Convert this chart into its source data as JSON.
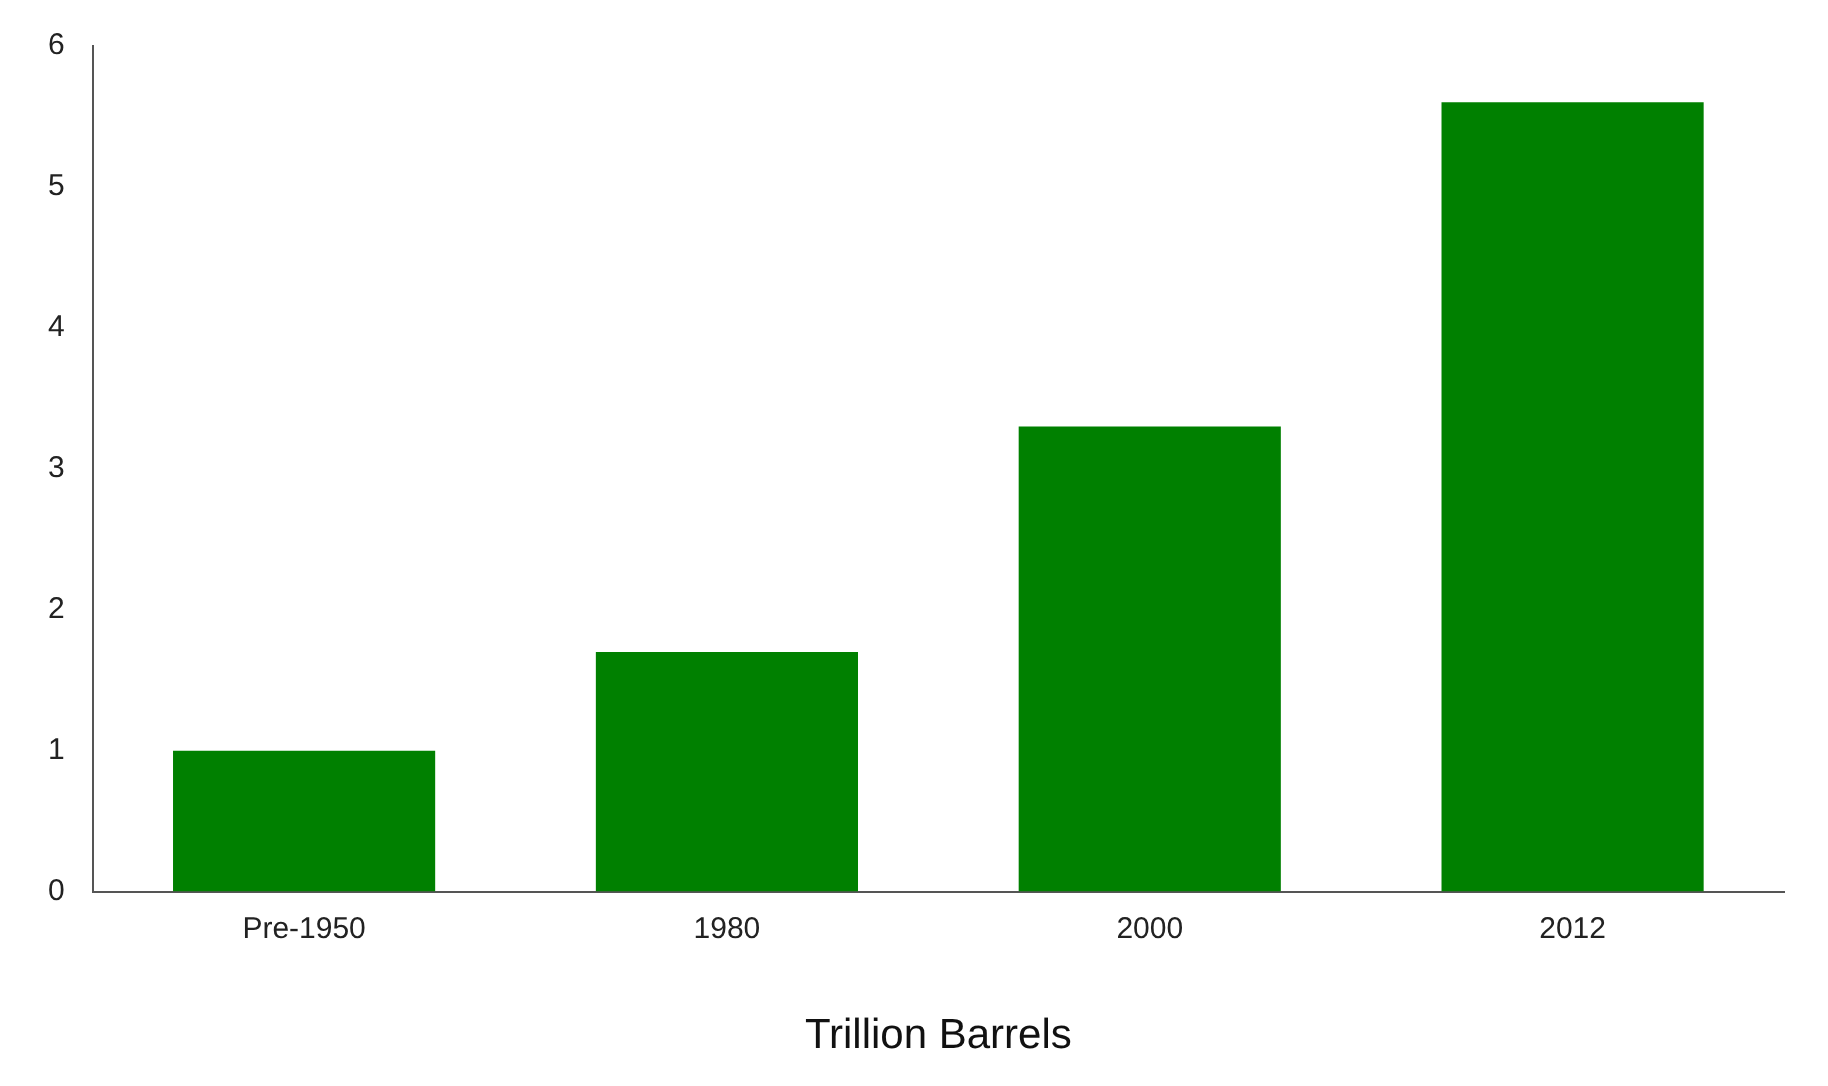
{
  "chart_data": {
    "type": "bar",
    "xlabel": "Trillion Barrels",
    "categories": [
      "Pre-1950",
      "1980",
      "2000",
      "2012"
    ],
    "values": [
      1.0,
      1.7,
      3.3,
      5.6
    ],
    "color": "#008000",
    "ylim": [
      0,
      6
    ],
    "yticks": [
      0,
      1,
      2,
      3,
      4,
      5,
      6
    ],
    "grid": false,
    "legend": false
  }
}
